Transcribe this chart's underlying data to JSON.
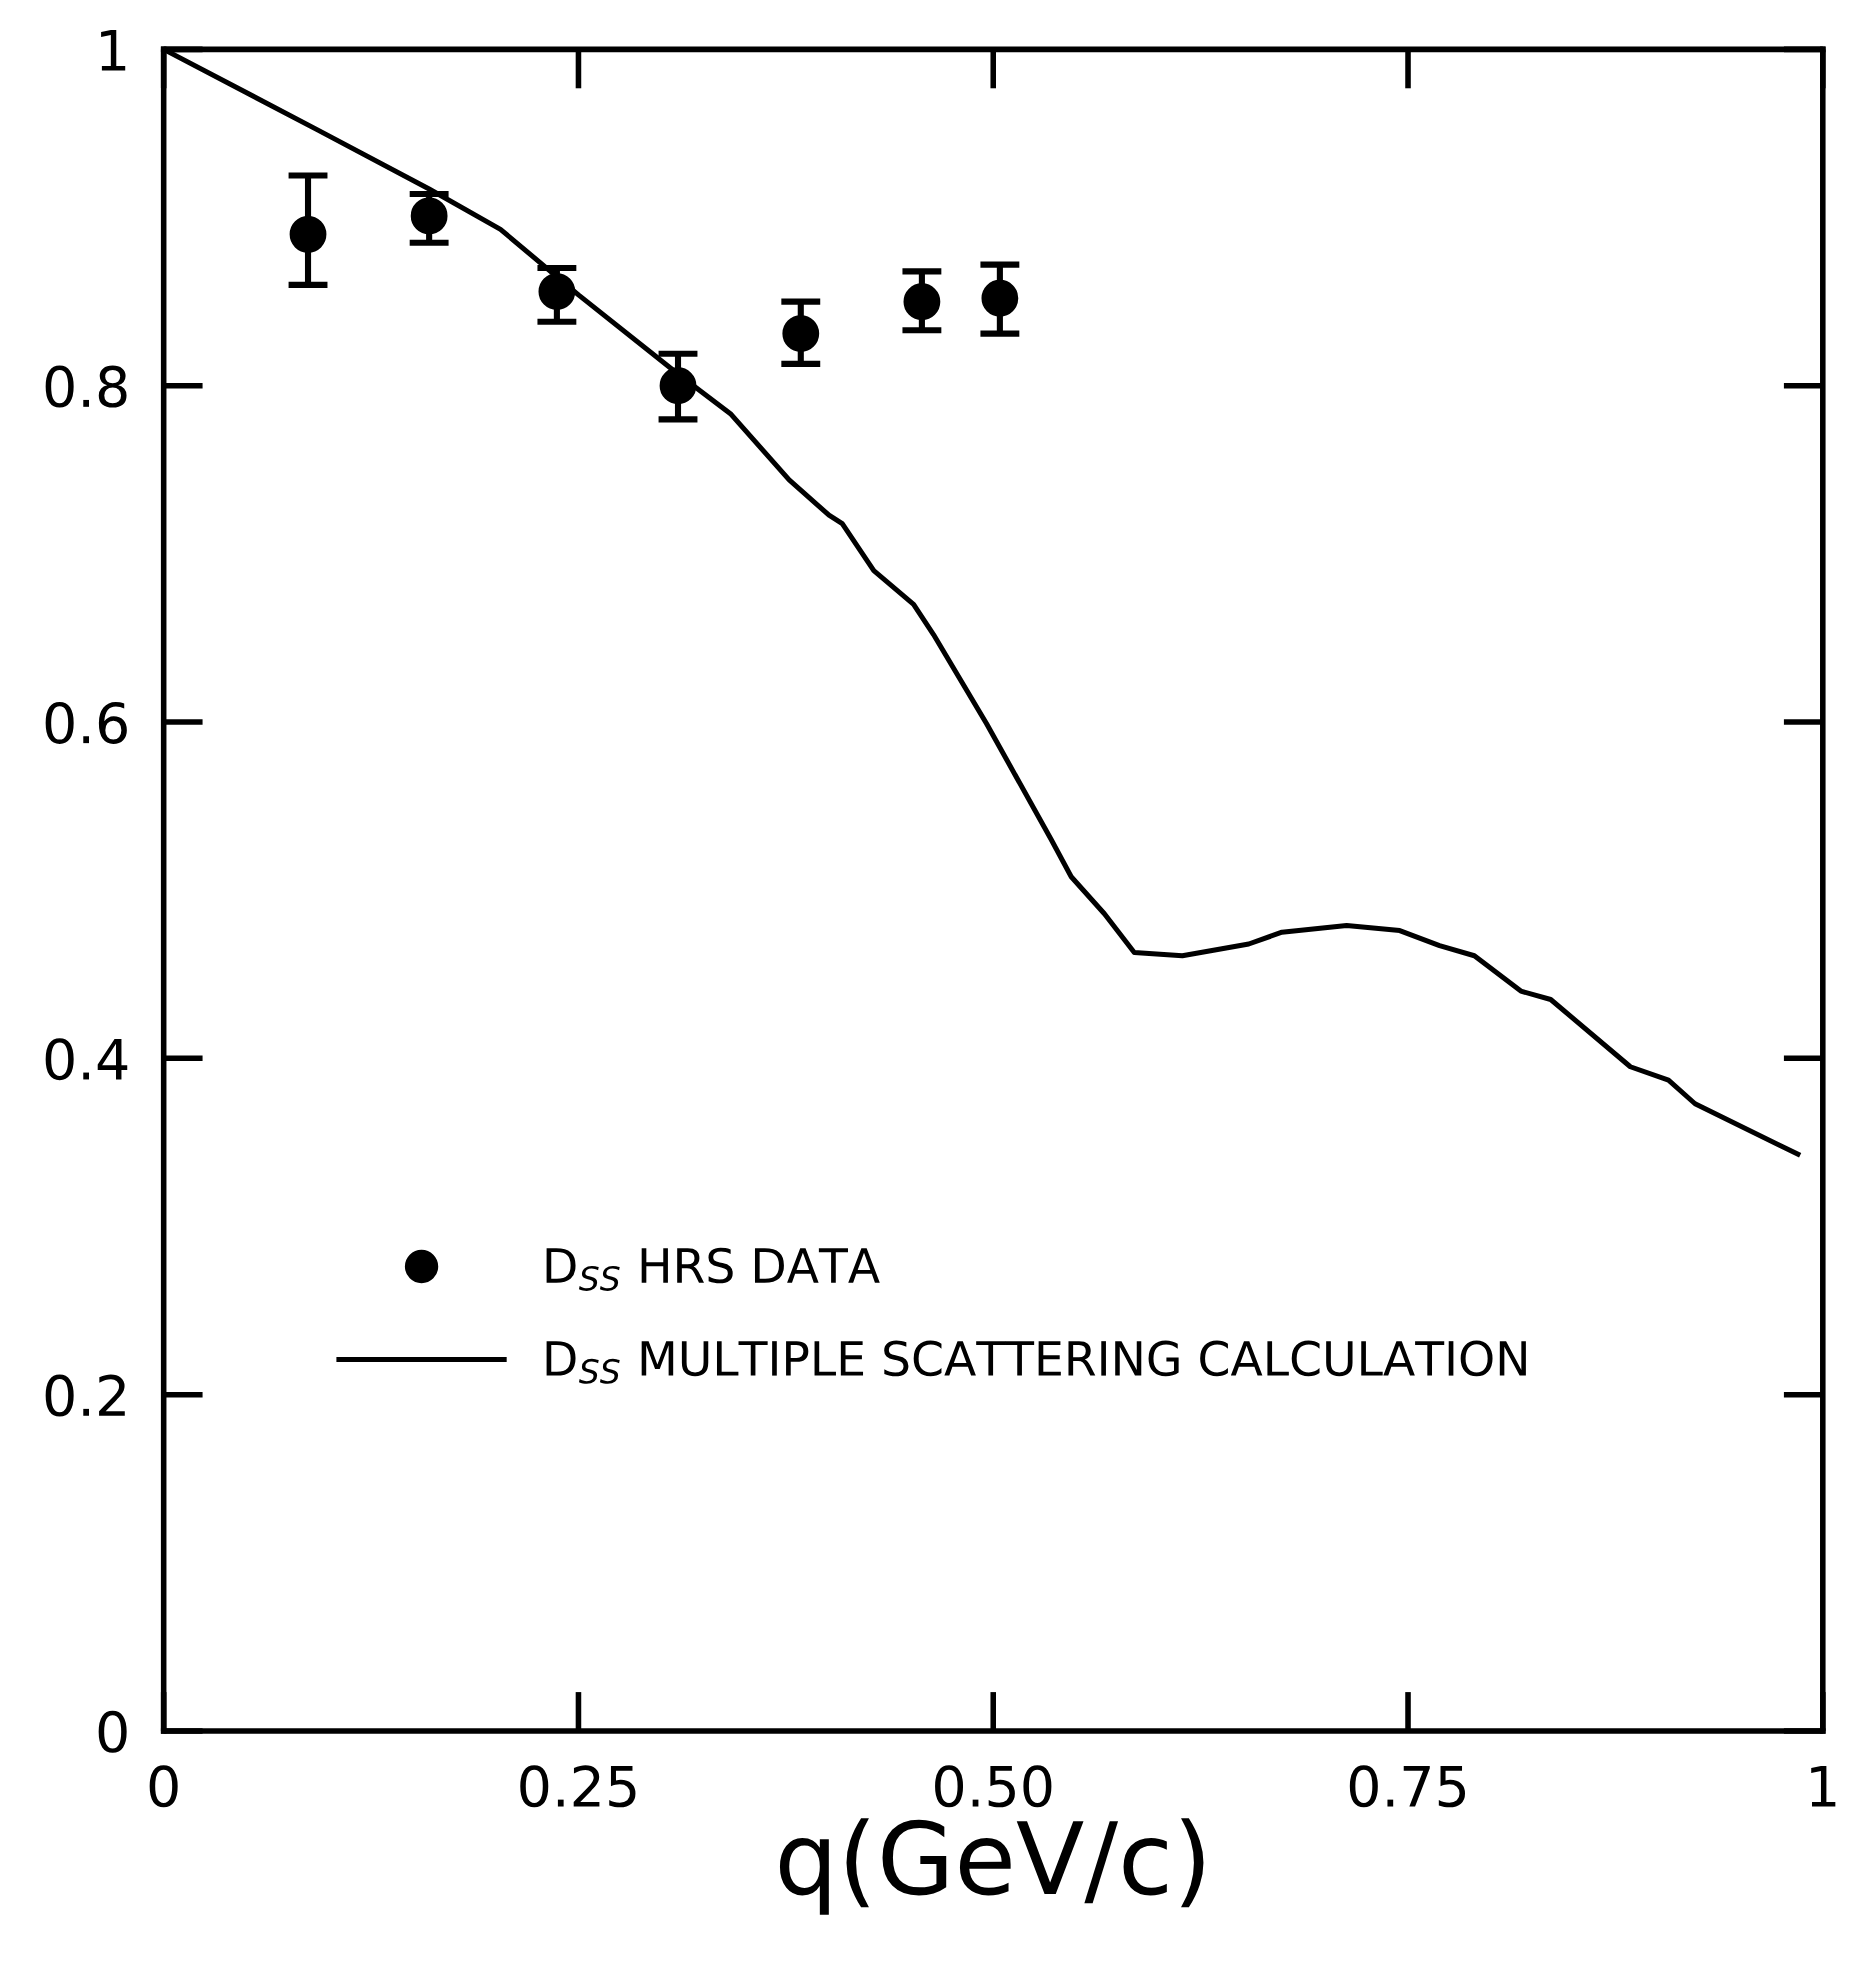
{
  "chart_data": {
    "type": "scatter",
    "xlabel": "q(GeV/c)",
    "xlim": [
      0,
      1
    ],
    "xticks": [
      0,
      {
        "value": 0.25,
        "label": "0.25"
      },
      {
        "value": 0.5,
        "label": "0.50"
      },
      {
        "value": 0.75,
        "label": "0.75"
      },
      1
    ],
    "ylim": [
      0,
      1
    ],
    "yticks": [
      0,
      0.2,
      0.4,
      0.6,
      0.8,
      1
    ],
    "grid": false,
    "legend": "bottom left",
    "marker": "circle",
    "series": [
      {
        "name": "D$_{SS}$ HRS DATA",
        "color": "#000000",
        "x": [
          0.087,
          0.16,
          0.237,
          0.31,
          0.384,
          0.457,
          0.504
        ],
        "values": [
          0.89,
          0.901,
          0.856,
          0.8,
          0.831,
          0.85,
          0.852
        ],
        "errors": [
          [
            0.86,
            0.925
          ],
          [
            0.885,
            0.914
          ],
          [
            0.838,
            0.87
          ],
          [
            0.78,
            0.819
          ],
          [
            0.813,
            0.85
          ],
          [
            0.833,
            0.868
          ],
          [
            0.831,
            0.872
          ]
        ]
      },
      {
        "name": "D$_{SS}$ MULTIPLE SCATTERING CALCULATION",
        "type": "line",
        "color": "#000000",
        "marker": "none",
        "line_style": "solid",
        "x": [
          0,
          0.093,
          0.16,
          0.203,
          0.25,
          0.31,
          0.342,
          0.377,
          0.401,
          0.409,
          0.428,
          0.452,
          0.464,
          0.496,
          0.535,
          0.547,
          0.567,
          0.585,
          0.614,
          0.654,
          0.674,
          0.713,
          0.745,
          0.769,
          0.79,
          0.818,
          0.836,
          0.884,
          0.907,
          0.923,
          0.985
        ],
        "values": [
          1,
          0.952,
          0.917,
          0.893,
          0.854,
          0.807,
          0.783,
          0.744,
          0.723,
          0.718,
          0.69,
          0.67,
          0.652,
          0.599,
          0.53,
          0.508,
          0.486,
          0.463,
          0.461,
          0.468,
          0.475,
          0.479,
          0.476,
          0.467,
          0.461,
          0.44,
          0.435,
          0.395,
          0.387,
          0.373,
          0.343
        ]
      }
    ]
  }
}
